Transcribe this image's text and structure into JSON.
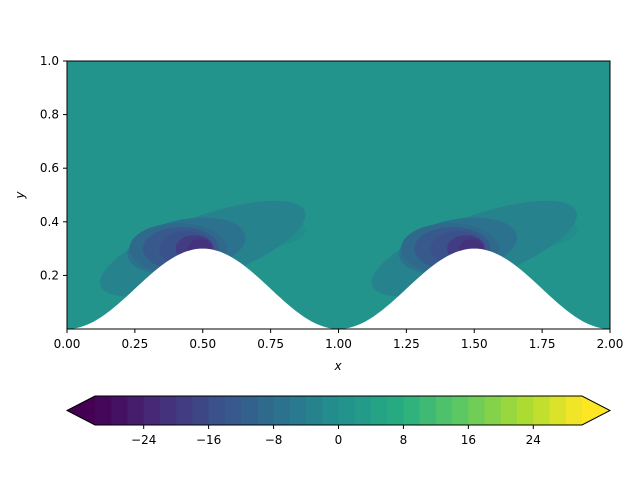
{
  "chart_data": {
    "type": "contourf",
    "title": "",
    "xlabel": "x",
    "ylabel": "y",
    "xlim": [
      0,
      2
    ],
    "ylim": [
      0,
      1
    ],
    "x_ticks": [
      "0.00",
      "0.25",
      "0.50",
      "0.75",
      "1.00",
      "1.25",
      "1.50",
      "1.75",
      "2.00"
    ],
    "y_ticks": [
      "0.2",
      "0.4",
      "0.6",
      "0.8",
      "1.0"
    ],
    "background_value": 0,
    "lower_boundary": {
      "shape": "cosine hills",
      "crest_x": [
        0.5,
        1.5
      ],
      "crest_height": 0.3,
      "trough_x": [
        0.0,
        1.0,
        2.0
      ],
      "trough_height": 0.0
    },
    "vortices": [
      {
        "x": 0.5,
        "y": 0.3,
        "min_value": -22
      },
      {
        "x": 1.5,
        "y": 0.3,
        "min_value": -22
      }
    ],
    "colorbar": {
      "orientation": "horizontal",
      "extend": "both",
      "colormap": "viridis",
      "vmin": -30,
      "vmax": 30,
      "levels": 30,
      "ticks": [
        -24,
        -16,
        -8,
        0,
        8,
        16,
        24
      ],
      "tick_labels": [
        "−24",
        "−16",
        "−8",
        "0",
        "8",
        "16",
        "24"
      ]
    }
  }
}
